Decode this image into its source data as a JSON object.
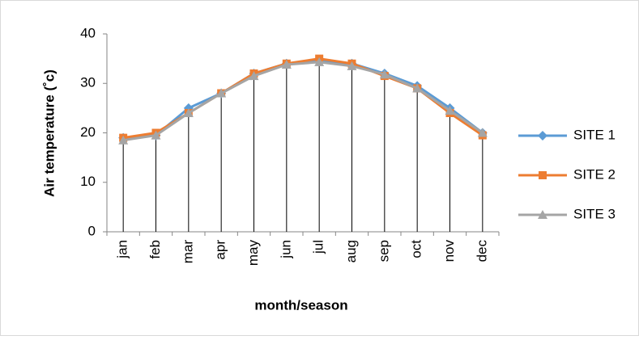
{
  "chart_data": {
    "type": "line",
    "y_label": "Air temperature (˚c)",
    "x_label": "month/season",
    "categories": [
      "jan",
      "feb",
      "mar",
      "apr",
      "may",
      "jun",
      "jul",
      "aug",
      "sep",
      "oct",
      "nov",
      "dec"
    ],
    "series": [
      {
        "name": "SITE 1",
        "color": "#5b9bd5",
        "marker": "diamond",
        "values": [
          19,
          19.5,
          25,
          28,
          32,
          34,
          34.5,
          34,
          32,
          29.5,
          25,
          20
        ]
      },
      {
        "name": "SITE 2",
        "color": "#ed7d31",
        "marker": "square",
        "values": [
          19,
          20,
          24,
          28,
          32,
          34,
          35,
          34,
          31.5,
          29,
          24,
          19.5
        ]
      },
      {
        "name": "SITE 3",
        "color": "#a5a5a5",
        "marker": "triangle",
        "values": [
          18.5,
          19.5,
          24,
          28,
          31.5,
          33.8,
          34.3,
          33.5,
          31.8,
          29,
          24.5,
          20
        ]
      }
    ],
    "drop_lines": true,
    "ylim": [
      0,
      40
    ],
    "yticks": [
      0,
      10,
      20,
      30,
      40
    ],
    "legend": "right"
  }
}
